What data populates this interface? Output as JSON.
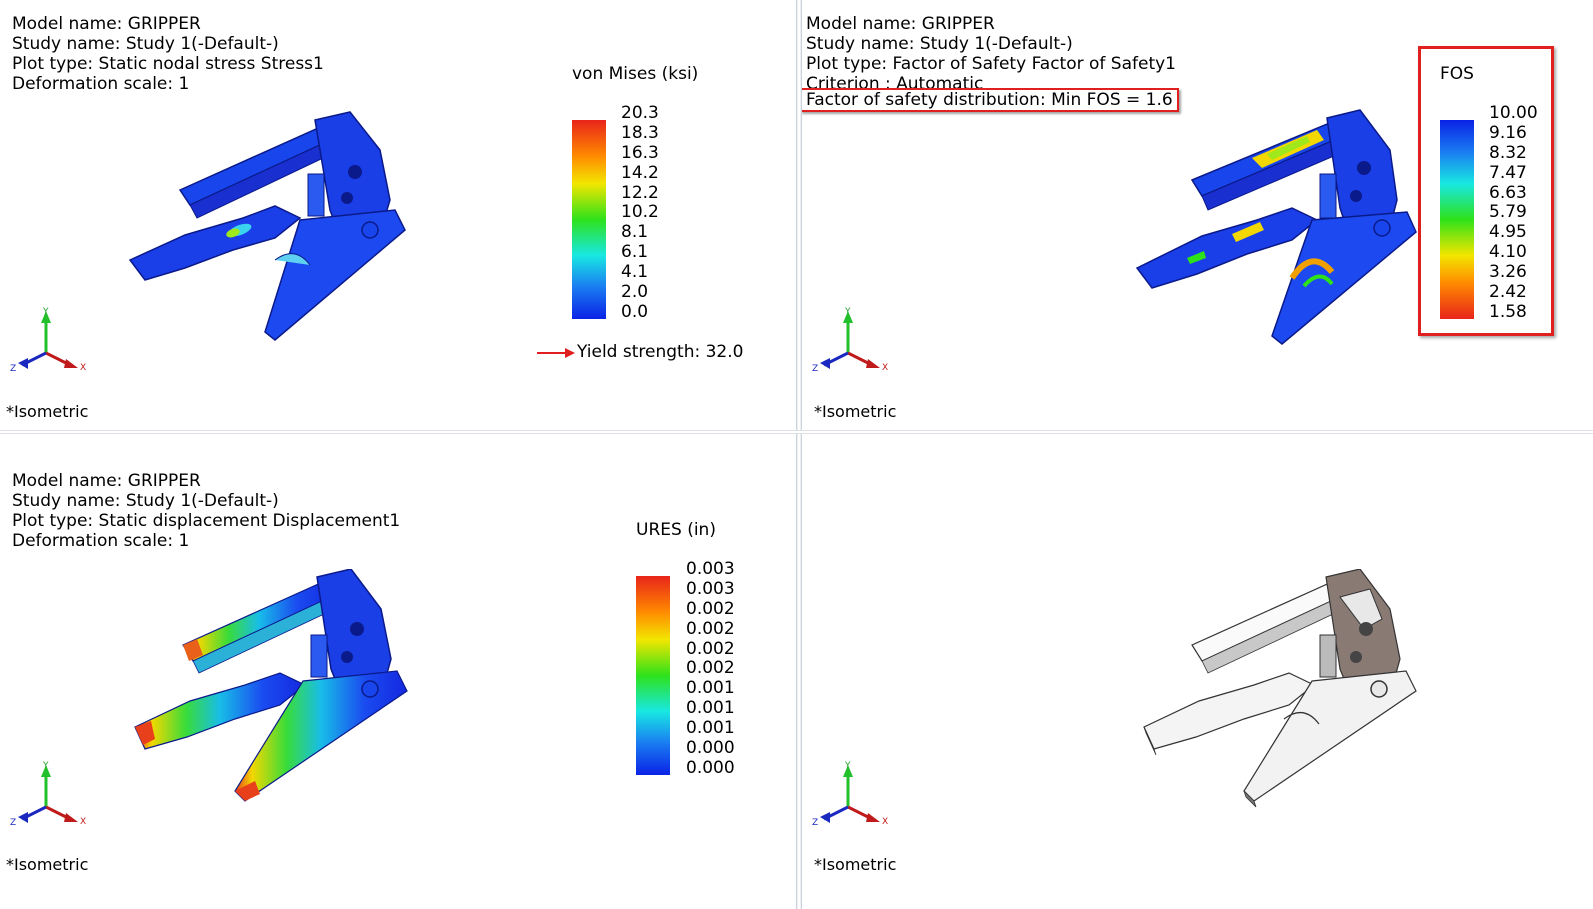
{
  "view_label": "*Isometric",
  "triad_labels": {
    "y": "Y",
    "x": "X",
    "z": "Z"
  },
  "panes": {
    "stress": {
      "lines": [
        "Model name: GRIPPER",
        "Study name: Study 1(-Default-)",
        "Plot type: Static nodal stress Stress1",
        "Deformation scale: 1"
      ],
      "legend_title": "von Mises (ksi)",
      "ticks": [
        "20.3",
        "18.3",
        "16.3",
        "14.2",
        "12.2",
        "10.2",
        "8.1",
        "6.1",
        "4.1",
        "2.0",
        "0.0"
      ],
      "yield_text": "Yield strength: 32.0"
    },
    "fos": {
      "lines": [
        "Model name: GRIPPER",
        "Study name: Study 1(-Default-)",
        "Plot type: Factor of Safety Factor of Safety1",
        "Criterion : Automatic"
      ],
      "highlight_line": "Factor of safety distribution: Min FOS = 1.6",
      "legend_title": "FOS",
      "ticks": [
        "10.00",
        "9.16",
        "8.32",
        "7.47",
        "6.63",
        "5.79",
        "4.95",
        "4.10",
        "3.26",
        "2.42",
        "1.58"
      ]
    },
    "displacement": {
      "lines": [
        "Model name: GRIPPER",
        "Study name: Study 1(-Default-)",
        "Plot type: Static displacement Displacement1",
        "Deformation scale: 1"
      ],
      "legend_title": "URES (in)",
      "ticks": [
        "0.003",
        "0.003",
        "0.002",
        "0.002",
        "0.002",
        "0.002",
        "0.001",
        "0.001",
        "0.001",
        "0.000",
        "0.000"
      ]
    }
  },
  "colors": {
    "highlight": "#e0201e",
    "scale_top": "#e8241a",
    "scale_bottom": "#0a22e6"
  }
}
